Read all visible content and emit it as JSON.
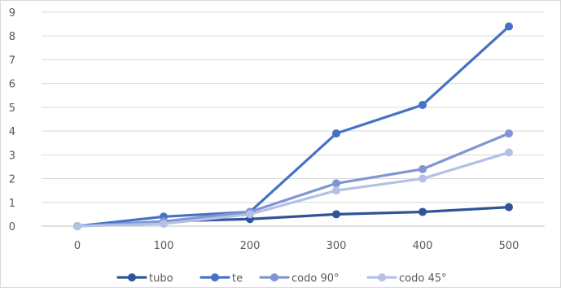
{
  "chart_data": {
    "type": "line",
    "title": "",
    "xlabel": "",
    "ylabel": "",
    "x": [
      0,
      100,
      200,
      300,
      400,
      500
    ],
    "ylim": [
      0,
      9
    ],
    "yticks": [
      0,
      1,
      2,
      3,
      4,
      5,
      6,
      7,
      8,
      9
    ],
    "grid": "horizontal",
    "legend_position": "bottom",
    "markers": "circle",
    "series": [
      {
        "name": "tubo",
        "color": "#2f5597",
        "values": [
          0,
          0.2,
          0.3,
          0.5,
          0.6,
          0.8
        ]
      },
      {
        "name": "te",
        "color": "#4472c4",
        "values": [
          0,
          0.4,
          0.6,
          3.9,
          5.1,
          8.4
        ]
      },
      {
        "name": "codo 90°",
        "color": "#7f96d2",
        "values": [
          0,
          0.2,
          0.6,
          1.8,
          2.4,
          3.9
        ]
      },
      {
        "name": "codo 45°",
        "color": "#b4c1e4",
        "values": [
          0,
          0.1,
          0.5,
          1.5,
          2.0,
          3.1
        ]
      }
    ]
  }
}
